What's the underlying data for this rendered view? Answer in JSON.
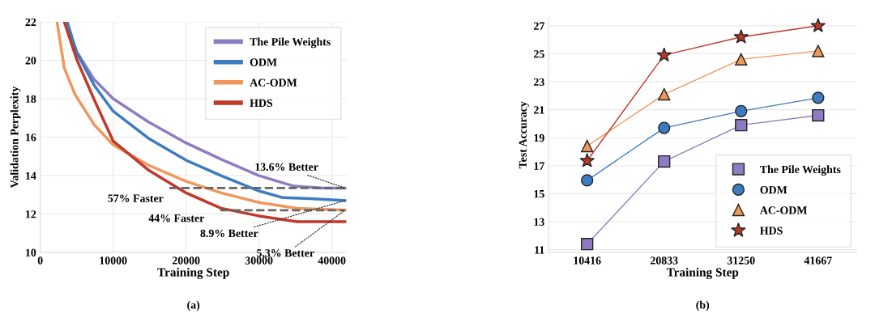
{
  "chart_data": [
    {
      "type": "line",
      "xlabel": "Training Step",
      "ylabel": "Validation Perplexity",
      "xlim": [
        0,
        42000
      ],
      "ylim": [
        10,
        22
      ],
      "xticks": [
        0,
        10000,
        20000,
        30000,
        40000
      ],
      "yticks": [
        10,
        12,
        14,
        16,
        18,
        20,
        22
      ],
      "grid": true,
      "legend": "top right",
      "marker": "none",
      "line_style": "solid",
      "series": [
        {
          "name": "The Pile Weights",
          "color": "#8e7cc3",
          "x": [
            3500,
            5000,
            7400,
            10000,
            14800,
            20000,
            24800,
            30000,
            34800,
            38900,
            41800
          ],
          "values": [
            22,
            20.45,
            19.0,
            18.0,
            16.8,
            15.7,
            14.85,
            14.0,
            13.45,
            13.35,
            13.35
          ]
        },
        {
          "name": "ODM",
          "color": "#3d7cc0",
          "x": [
            3700,
            5000,
            7400,
            10000,
            14800,
            20000,
            24800,
            30000,
            33300,
            37000,
            41800
          ],
          "values": [
            22,
            20.4,
            18.7,
            17.35,
            15.95,
            14.8,
            14.0,
            13.2,
            12.85,
            12.8,
            12.7
          ]
        },
        {
          "name": "AC-ODM",
          "color": "#f0975b",
          "x": [
            2300,
            3300,
            4800,
            7400,
            10000,
            14800,
            20000,
            24800,
            30000,
            35200,
            41800
          ],
          "values": [
            22,
            19.6,
            18.2,
            16.65,
            15.6,
            14.55,
            13.7,
            13.1,
            12.6,
            12.3,
            12.2
          ]
        },
        {
          "name": "HDS",
          "color": "#c0392b",
          "x": [
            3300,
            5000,
            7400,
            10000,
            14800,
            20000,
            24800,
            30000,
            35200,
            41800
          ],
          "values": [
            22,
            20.05,
            17.95,
            15.8,
            14.3,
            13.1,
            12.3,
            11.9,
            11.6,
            11.6
          ]
        },
        {
          "color": "#666666",
          "line_style": "dashed",
          "x": [
            17700,
            41800
          ],
          "values": [
            13.35,
            13.35
          ]
        },
        {
          "color": "#666666",
          "line_style": "dashed",
          "x": [
            24700,
            41800
          ],
          "values": [
            12.2,
            12.2
          ]
        }
      ],
      "annotations": [
        {
          "text": "13.6% Better",
          "x": 41800,
          "y": 13.35
        },
        {
          "text": "57% Faster",
          "x": 17700,
          "y": 13.35
        },
        {
          "text": "44% Faster",
          "x": 24700,
          "y": 12.2
        },
        {
          "text": "8.9% Better",
          "x": 41800,
          "y": 12.7
        },
        {
          "text": "5.3% Better",
          "x": 41800,
          "y": 12.2
        },
        "(a)"
      ]
    },
    {
      "type": "line",
      "xlabel": "Training Step",
      "ylabel": "Test Accuracy",
      "categories": [
        "10416",
        "20833",
        "31250",
        "41667"
      ],
      "ylim": [
        10.8,
        27.6
      ],
      "yticks": [
        11,
        13,
        15,
        17,
        19,
        21,
        23,
        25,
        27
      ],
      "grid": "y",
      "legend": "bottom right",
      "line_style": "solid",
      "series": [
        {
          "name": "The Pile Weights",
          "color": "#8e7cc3",
          "marker": "square",
          "values": [
            11.4,
            17.3,
            19.9,
            20.6
          ]
        },
        {
          "name": "ODM",
          "color": "#3d7cc0",
          "marker": "circle",
          "values": [
            15.95,
            19.7,
            20.9,
            21.85
          ]
        },
        {
          "name": "AC-ODM",
          "color": "#f0975b",
          "marker": "triangle",
          "values": [
            18.4,
            22.1,
            24.6,
            25.2
          ]
        },
        {
          "name": "HDS",
          "color": "#c0392b",
          "marker": "star",
          "values": [
            17.35,
            24.9,
            26.2,
            27.0
          ]
        }
      ],
      "annotations": [
        "(b)"
      ]
    }
  ]
}
